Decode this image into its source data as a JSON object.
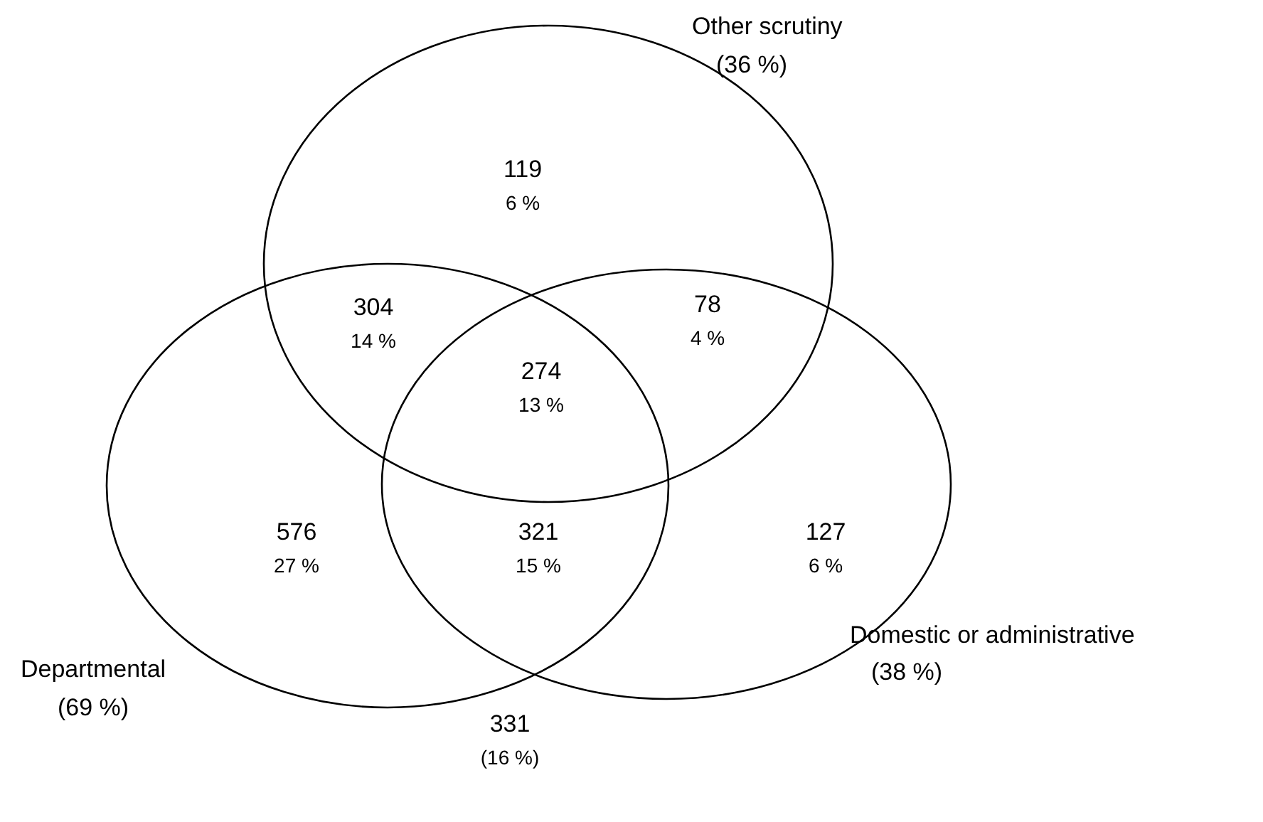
{
  "chart_data": {
    "type": "other",
    "color": "#000000",
    "categories": [
      null,
      null,
      null,
      null,
      null,
      null,
      null,
      null
    ],
    "values": [
      119,
      304,
      78,
      274,
      576,
      321,
      127,
      331
    ],
    "data_labels": true,
    "annotations": [
      "6 %",
      "14 %",
      "4 %",
      "13 %",
      "27 %",
      "15 %",
      "6 %",
      "(16 %)",
      "Other scrutiny\n(36 %)",
      "Domestic or administrative\n(38 %)",
      "Departmental\n(69 %)"
    ]
  }
}
